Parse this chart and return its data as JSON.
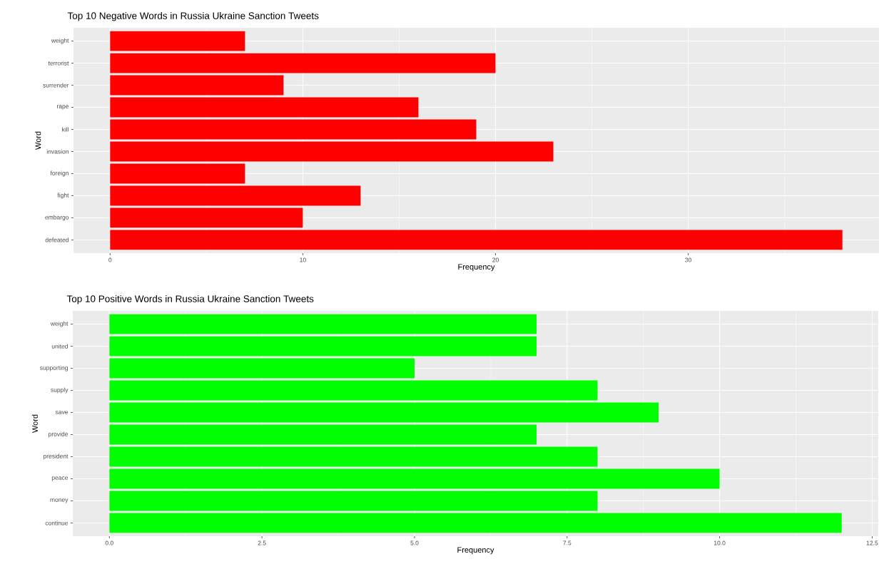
{
  "chart_data": [
    {
      "type": "bar",
      "orientation": "horizontal",
      "title": "Top 10 Negative Words in Russia Ukraine Sanction Tweets",
      "xlabel": "Frequency",
      "ylabel": "Word",
      "categories": [
        "weight",
        "terrorist",
        "surrender",
        "rape",
        "kill",
        "invasion",
        "foreign",
        "fight",
        "embargo",
        "defeated"
      ],
      "values": [
        7,
        20,
        9,
        16,
        19,
        23,
        7,
        13,
        10,
        38
      ],
      "color": "#ff0000",
      "xlim": [
        -1.9,
        39.9
      ],
      "xticks": [
        0,
        10,
        20,
        30
      ],
      "grid": true
    },
    {
      "type": "bar",
      "orientation": "horizontal",
      "title": "Top 10 Positive Words in Russia Ukraine Sanction Tweets",
      "xlabel": "Frequency",
      "ylabel": "Word",
      "categories": [
        "weight",
        "united",
        "supporting",
        "supply",
        "save",
        "provide",
        "president",
        "peace",
        "money",
        "continue"
      ],
      "values": [
        7,
        7,
        5,
        8,
        9,
        7,
        8,
        10,
        8,
        12
      ],
      "color": "#00ff00",
      "xlim": [
        -0.6,
        12.6
      ],
      "xticks": [
        {
          "value": 0,
          "label": "0.0"
        },
        {
          "value": 2.5,
          "label": "2.5"
        },
        {
          "value": 5,
          "label": "5.0"
        },
        {
          "value": 7.5,
          "label": "7.5"
        },
        {
          "value": 10,
          "label": "10.0"
        },
        {
          "value": 12.5,
          "label": "12.5"
        }
      ],
      "grid": true
    }
  ]
}
